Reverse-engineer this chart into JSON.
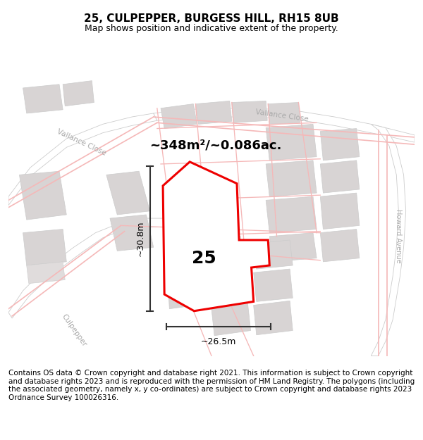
{
  "title": "25, CULPEPPER, BURGESS HILL, RH15 8UB",
  "subtitle": "Map shows position and indicative extent of the property.",
  "footer": "Contains OS data © Crown copyright and database right 2021. This information is subject to Crown copyright and database rights 2023 and is reproduced with the permission of HM Land Registry. The polygons (including the associated geometry, namely x, y co-ordinates) are subject to Crown copyright and database rights 2023 Ordnance Survey 100026316.",
  "area_text": "~348m²/~0.086ac.",
  "width_label": "~26.5m",
  "height_label": "~30.8m",
  "property_number": "25",
  "bg_color": "#ffffff",
  "map_bg": "#ffffff",
  "road_color_pink": "#f5c0c0",
  "road_color_gray": "#d0c8c8",
  "plot_color": "#ee0000",
  "plot_fill": "#ffffff",
  "title_fontsize": 11,
  "subtitle_fontsize": 9,
  "footer_fontsize": 7.5
}
